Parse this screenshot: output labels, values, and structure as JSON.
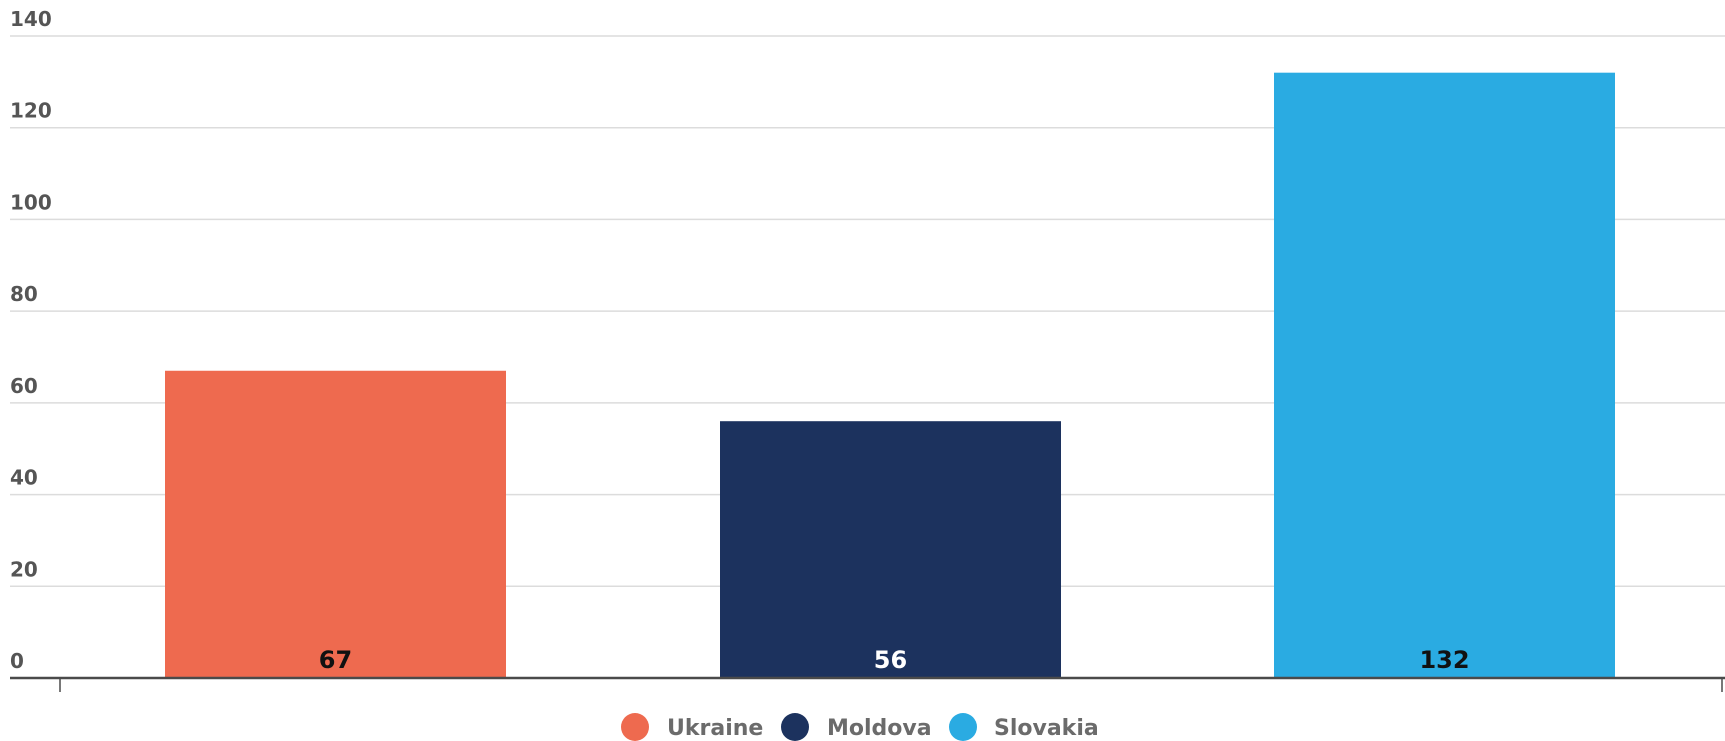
{
  "chart_data": {
    "type": "bar",
    "categories": [
      "Ukraine",
      "Moldova",
      "Slovakia"
    ],
    "series": [
      {
        "name": "Ukraine",
        "values": [
          67,
          null,
          null
        ],
        "color": "#ee6a4f"
      },
      {
        "name": "Moldova",
        "values": [
          null,
          56,
          null
        ],
        "color": "#1c325e"
      },
      {
        "name": "Slovakia",
        "values": [
          null,
          null,
          132
        ],
        "color": "#2aabe2"
      }
    ],
    "values": [
      67,
      56,
      132
    ],
    "data_labels": [
      "67",
      "56",
      "132"
    ],
    "data_label_colors": [
      "#111111",
      "#ffffff",
      "#111111"
    ],
    "colors": [
      "#ee6a4f",
      "#1c325e",
      "#2aabe2"
    ],
    "yticks": [
      0,
      20,
      40,
      60,
      80,
      100,
      120,
      140
    ],
    "ytick_labels": [
      "0",
      "20",
      "40",
      "60",
      "80",
      "100",
      "120",
      "140"
    ],
    "ylim": [
      0,
      140
    ],
    "title": "",
    "xlabel": "",
    "ylabel": "",
    "grid": true,
    "legend": {
      "placement": "bottom-center",
      "entries": [
        "Ukraine",
        "Moldova",
        "Slovakia"
      ]
    }
  }
}
